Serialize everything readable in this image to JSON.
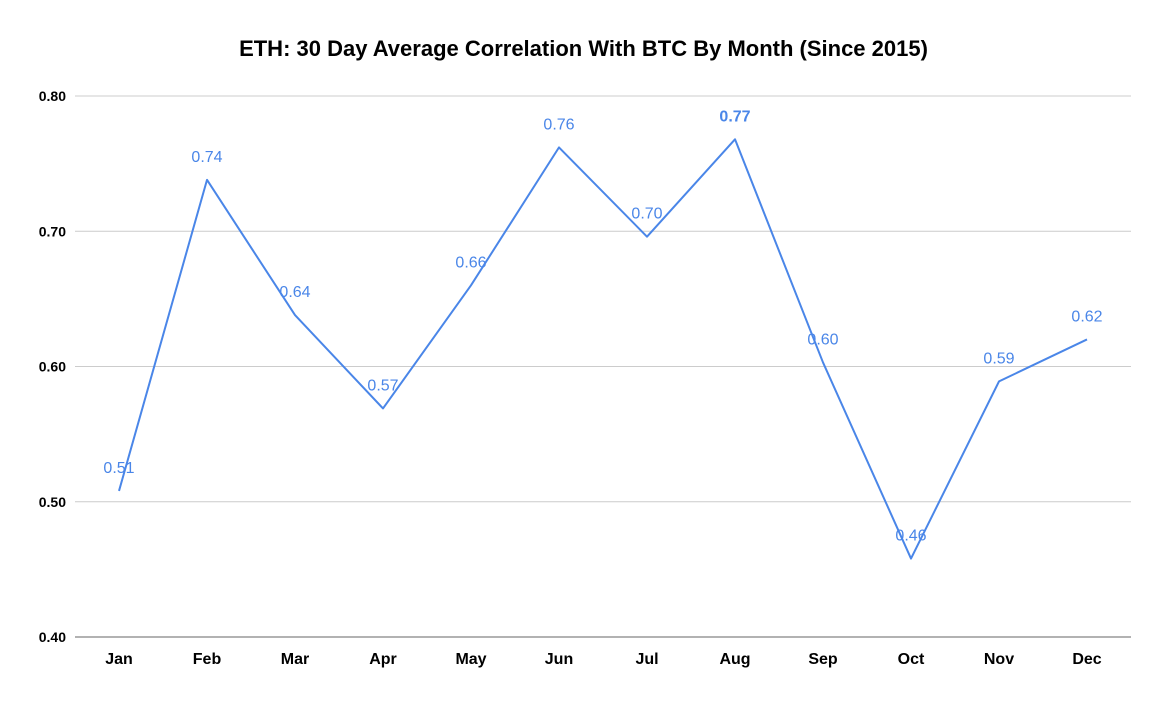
{
  "chart_data": {
    "type": "line",
    "title": "ETH: 30 Day Average Correlation With BTC By Month (Since 2015)",
    "xlabel": "",
    "ylabel": "",
    "categories": [
      "Jan",
      "Feb",
      "Mar",
      "Apr",
      "May",
      "Jun",
      "Jul",
      "Aug",
      "Sep",
      "Oct",
      "Nov",
      "Dec"
    ],
    "series": [
      {
        "values": [
          0.508,
          0.738,
          0.638,
          0.569,
          0.66,
          0.762,
          0.696,
          0.768,
          0.603,
          0.458,
          0.589,
          0.62
        ],
        "data_labels": [
          "0.51",
          "0.74",
          "0.64",
          "0.57",
          "0.66",
          "0.76",
          "0.70",
          "0.77",
          "0.60",
          "0.46",
          "0.59",
          "0.62"
        ],
        "color": "#4a86e8"
      }
    ],
    "ylim": [
      0.4,
      0.8
    ],
    "yticks": [
      0.4,
      0.5,
      0.6,
      0.7,
      0.8
    ],
    "ytick_labels": [
      "0.40",
      "0.50",
      "0.60",
      "0.70",
      "0.80"
    ],
    "grid": true,
    "legend": "none",
    "highlighted_label_index": 7
  }
}
